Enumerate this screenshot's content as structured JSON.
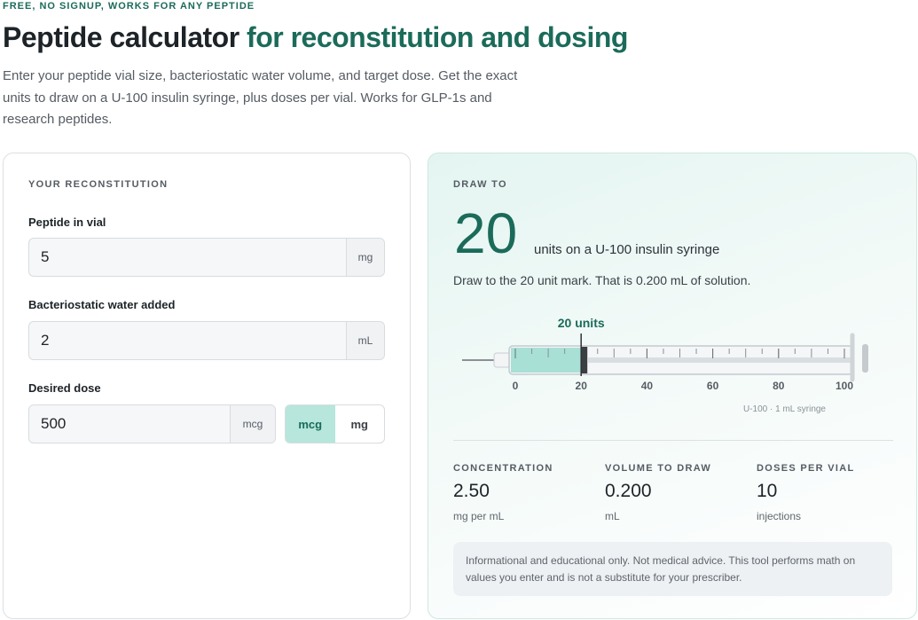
{
  "header": {
    "eyebrow": "FREE, NO SIGNUP, WORKS FOR ANY PEPTIDE",
    "title": "Peptide calculator",
    "title_accent": "for reconstitution and dosing",
    "description": "Enter your peptide vial size, bacteriostatic water volume, and target dose. Get the exact units to draw on a U-100 insulin syringe, plus doses per vial. Works for GLP-1s and research peptides."
  },
  "form": {
    "heading": "YOUR RECONSTITUTION",
    "fields": [
      {
        "label": "Peptide in vial",
        "value": "5",
        "unit": "mg"
      },
      {
        "label": "Bacteriostatic water added",
        "value": "2",
        "unit": "mL"
      },
      {
        "label": "Desired dose",
        "value": "500",
        "unit": "mcg"
      }
    ],
    "dose_units": [
      "mcg",
      "mg"
    ]
  },
  "result": {
    "heading": "DRAW TO",
    "units": 20,
    "units_caption": "units on a U-100 insulin syringe",
    "instruction": "Draw to the 20 unit mark. That is 0.200 mL of solution.",
    "syringe": {
      "marker_label": "20 units",
      "ticks": [
        0,
        20,
        40,
        60,
        80,
        100
      ],
      "note": "U-100 · 1 mL syringe"
    },
    "stats": [
      {
        "label": "CONCENTRATION",
        "value": "2.50",
        "unit": "mg per mL"
      },
      {
        "label": "VOLUME TO DRAW",
        "value": "0.200",
        "unit": "mL"
      },
      {
        "label": "DOSES PER VIAL",
        "value": "10",
        "unit": "injections"
      }
    ],
    "disclaimer": "Informational and educational only. Not medical advice. This tool performs math on values you enter and is not a substitute for your prescriber."
  }
}
